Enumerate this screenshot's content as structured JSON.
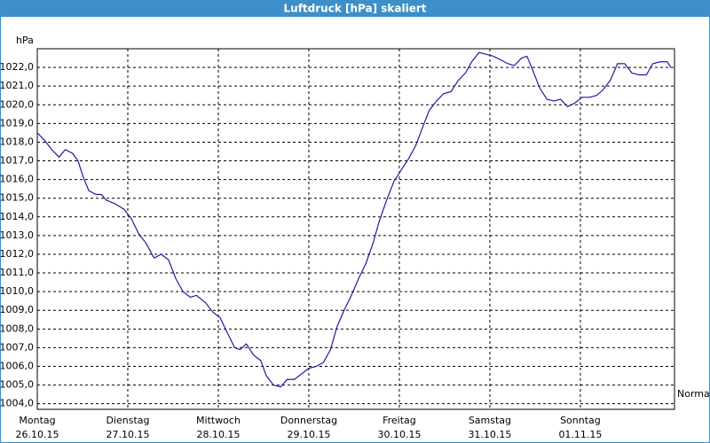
{
  "chart_data": {
    "type": "line",
    "title": "Luftdruck [hPa] skaliert",
    "ylabel": "hPa",
    "xlim": [
      0,
      7.04
    ],
    "ylim": [
      1003.7,
      1023.0
    ],
    "xticks": [
      {
        "value": 0,
        "label": "Montag",
        "sublabel": "26.10.15"
      },
      {
        "value": 1,
        "label": "Dienstag",
        "sublabel": "27.10.15"
      },
      {
        "value": 2,
        "label": "Mittwoch",
        "sublabel": "28.10.15"
      },
      {
        "value": 3,
        "label": "Donnerstag",
        "sublabel": "29.10.15"
      },
      {
        "value": 4,
        "label": "Freitag",
        "sublabel": "30.10.15"
      },
      {
        "value": 5,
        "label": "Samstag",
        "sublabel": "31.10.15"
      },
      {
        "value": 6,
        "label": "Sonntag",
        "sublabel": "01.11.15"
      }
    ],
    "yticks": [
      {
        "value": 1004,
        "label": "1004,0"
      },
      {
        "value": 1005,
        "label": "1005,0"
      },
      {
        "value": 1006,
        "label": "1006,0"
      },
      {
        "value": 1007,
        "label": "1007,0"
      },
      {
        "value": 1008,
        "label": "1008,0"
      },
      {
        "value": 1009,
        "label": "1009,0"
      },
      {
        "value": 1010,
        "label": "1010,0"
      },
      {
        "value": 1011,
        "label": "1011,0"
      },
      {
        "value": 1012,
        "label": "1012,0"
      },
      {
        "value": 1013,
        "label": "1013,0"
      },
      {
        "value": 1014,
        "label": "1014,0"
      },
      {
        "value": 1015,
        "label": "1015,0"
      },
      {
        "value": 1016,
        "label": "1016,0"
      },
      {
        "value": 1017,
        "label": "1017,0"
      },
      {
        "value": 1018,
        "label": "1018,0"
      },
      {
        "value": 1019,
        "label": "1019,0"
      },
      {
        "value": 1020,
        "label": "1020,0"
      },
      {
        "value": 1021,
        "label": "1021,0"
      },
      {
        "value": 1022,
        "label": "1022,0"
      }
    ],
    "grid": true,
    "x": [
      0,
      0.08,
      0.16,
      0.24,
      0.31,
      0.39,
      0.45,
      0.51,
      0.57,
      0.65,
      0.71,
      0.76,
      0.86,
      0.96,
      1.04,
      1.12,
      1.2,
      1.29,
      1.37,
      1.45,
      1.53,
      1.61,
      1.69,
      1.76,
      1.86,
      1.94,
      2.02,
      2.1,
      2.18,
      2.24,
      2.31,
      2.39,
      2.47,
      2.53,
      2.61,
      2.69,
      2.76,
      2.84,
      2.92,
      3.0,
      3.08,
      3.16,
      3.24,
      3.31,
      3.39,
      3.47,
      3.55,
      3.63,
      3.71,
      3.78,
      3.86,
      3.94,
      4.02,
      4.1,
      4.18,
      4.25,
      4.33,
      4.41,
      4.49,
      4.57,
      4.65,
      4.73,
      4.8,
      4.88,
      4.96,
      5.04,
      5.12,
      5.2,
      5.27,
      5.35,
      5.41,
      5.47,
      5.55,
      5.63,
      5.71,
      5.78,
      5.86,
      5.94,
      6.02,
      6.1,
      6.18,
      6.25,
      6.33,
      6.41,
      6.49,
      6.57,
      6.65,
      6.73,
      6.8,
      6.88,
      6.96,
      7.0
    ],
    "series": [
      {
        "name": "Normal",
        "color": "#1c1ca0",
        "values": [
          1018.5,
          1018.1,
          1017.6,
          1017.2,
          1017.6,
          1017.4,
          1017.0,
          1016.1,
          1015.4,
          1015.2,
          1015.2,
          1014.9,
          1014.7,
          1014.4,
          1013.9,
          1013.1,
          1012.6,
          1011.8,
          1012.0,
          1011.7,
          1010.7,
          1010.0,
          1009.7,
          1009.8,
          1009.4,
          1008.9,
          1008.6,
          1007.8,
          1007.0,
          1006.9,
          1007.2,
          1006.6,
          1006.3,
          1005.5,
          1005.0,
          1004.9,
          1005.3,
          1005.3,
          1005.6,
          1005.9,
          1006.0,
          1006.2,
          1006.9,
          1008.1,
          1009.0,
          1009.8,
          1010.7,
          1011.5,
          1012.6,
          1013.8,
          1014.9,
          1015.9,
          1016.5,
          1017.1,
          1017.8,
          1018.7,
          1019.7,
          1020.2,
          1020.6,
          1020.7,
          1021.3,
          1021.7,
          1022.3,
          1022.8,
          1022.7,
          1022.6,
          1022.4,
          1022.2,
          1022.1,
          1022.5,
          1022.6,
          1021.9,
          1020.9,
          1020.3,
          1020.2,
          1020.3,
          1019.9,
          1020.1,
          1020.4,
          1020.4,
          1020.5,
          1020.8,
          1021.3,
          1022.2,
          1022.2,
          1021.7,
          1021.6,
          1021.6,
          1022.2,
          1022.3,
          1022.3,
          1022.0
        ]
      }
    ]
  }
}
